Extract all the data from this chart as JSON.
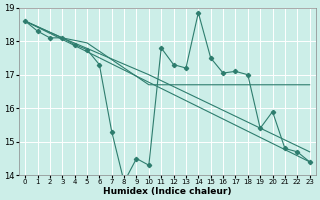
{
  "xlabel": "Humidex (Indice chaleur)",
  "xlim": [
    -0.5,
    23.5
  ],
  "ylim": [
    14,
    19
  ],
  "yticks": [
    14,
    15,
    16,
    17,
    18,
    19
  ],
  "xticks": [
    0,
    1,
    2,
    3,
    4,
    5,
    6,
    7,
    8,
    9,
    10,
    11,
    12,
    13,
    14,
    15,
    16,
    17,
    18,
    19,
    20,
    21,
    22,
    23
  ],
  "bg_color": "#cceee8",
  "grid_color": "#ffffff",
  "line_color": "#2e7d6e",
  "main_series": {
    "x": [
      0,
      1,
      2,
      3,
      4,
      5,
      6,
      7,
      8,
      9,
      10,
      11,
      12,
      13,
      14,
      15,
      16,
      17,
      18,
      19,
      20,
      21,
      22,
      23
    ],
    "y": [
      18.6,
      18.3,
      18.1,
      18.1,
      17.9,
      17.75,
      17.3,
      15.3,
      13.8,
      14.5,
      14.3,
      17.8,
      17.3,
      17.2,
      18.85,
      17.5,
      17.05,
      17.1,
      17.0,
      15.4,
      15.9,
      14.8,
      14.7,
      14.4
    ]
  },
  "trend_lines": [
    {
      "x": [
        0,
        3,
        5,
        10,
        23
      ],
      "y": [
        18.6,
        18.1,
        17.95,
        16.7,
        16.7
      ]
    },
    {
      "x": [
        0,
        3,
        10,
        23
      ],
      "y": [
        18.6,
        18.1,
        17.0,
        14.7
      ]
    },
    {
      "x": [
        0,
        23
      ],
      "y": [
        18.6,
        14.4
      ]
    }
  ]
}
